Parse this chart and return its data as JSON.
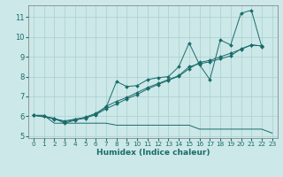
{
  "xlabel": "Humidex (Indice chaleur)",
  "bg_color": "#cce8e8",
  "grid_color": "#aacfcf",
  "line_color": "#1a6b6b",
  "xlim": [
    -0.5,
    23.5
  ],
  "ylim": [
    4.9,
    11.6
  ],
  "yticks": [
    5,
    6,
    7,
    8,
    9,
    10,
    11
  ],
  "xticks": [
    0,
    1,
    2,
    3,
    4,
    5,
    6,
    7,
    8,
    9,
    10,
    11,
    12,
    13,
    14,
    15,
    16,
    17,
    18,
    19,
    20,
    21,
    22,
    23
  ],
  "series": [
    {
      "x": [
        0,
        1,
        2,
        3,
        4,
        5,
        6,
        7,
        8,
        9,
        10,
        11,
        12,
        13,
        14,
        15,
        16,
        17,
        18,
        19,
        20,
        21,
        22
      ],
      "y": [
        6.05,
        6.0,
        5.9,
        5.65,
        5.8,
        5.95,
        6.15,
        6.45,
        7.75,
        7.5,
        7.55,
        7.85,
        7.95,
        8.0,
        8.5,
        9.7,
        8.6,
        7.85,
        9.85,
        9.6,
        11.2,
        11.35,
        9.5
      ],
      "markers": true
    },
    {
      "x": [
        0,
        1,
        2,
        3,
        4,
        5,
        6,
        7,
        8,
        9,
        10,
        11,
        12,
        13,
        14,
        15,
        16,
        17,
        18,
        19,
        20,
        21,
        22
      ],
      "y": [
        6.05,
        6.0,
        5.85,
        5.72,
        5.82,
        5.9,
        6.1,
        6.5,
        6.75,
        6.95,
        7.2,
        7.45,
        7.65,
        7.85,
        8.05,
        8.5,
        8.65,
        8.75,
        8.9,
        9.05,
        9.4,
        9.6,
        9.55
      ],
      "markers": true
    },
    {
      "x": [
        0,
        2,
        3,
        4,
        5,
        6,
        7,
        8,
        9,
        10,
        11,
        12,
        13,
        14,
        15,
        16,
        17,
        18,
        19,
        20,
        21,
        22
      ],
      "y": [
        6.05,
        5.88,
        5.76,
        5.86,
        5.94,
        6.08,
        6.38,
        6.62,
        6.88,
        7.1,
        7.38,
        7.6,
        7.82,
        8.02,
        8.4,
        8.72,
        8.82,
        9.0,
        9.18,
        9.38,
        9.6,
        9.55
      ],
      "markers": true
    },
    {
      "x": [
        0,
        1,
        2,
        3,
        4,
        5,
        6,
        7,
        8,
        9,
        10,
        11,
        12,
        13,
        14,
        15,
        16,
        17,
        18,
        19,
        20,
        21,
        22,
        23
      ],
      "y": [
        6.05,
        6.05,
        5.65,
        5.65,
        5.65,
        5.65,
        5.65,
        5.65,
        5.55,
        5.55,
        5.55,
        5.55,
        5.55,
        5.55,
        5.55,
        5.55,
        5.35,
        5.35,
        5.35,
        5.35,
        5.35,
        5.35,
        5.35,
        5.15
      ],
      "markers": false
    }
  ],
  "last_point_x": 23,
  "last_point_y": 5.15,
  "drop_series": [
    {
      "x": [
        22,
        23
      ],
      "y": [
        9.5,
        5.15
      ]
    }
  ]
}
